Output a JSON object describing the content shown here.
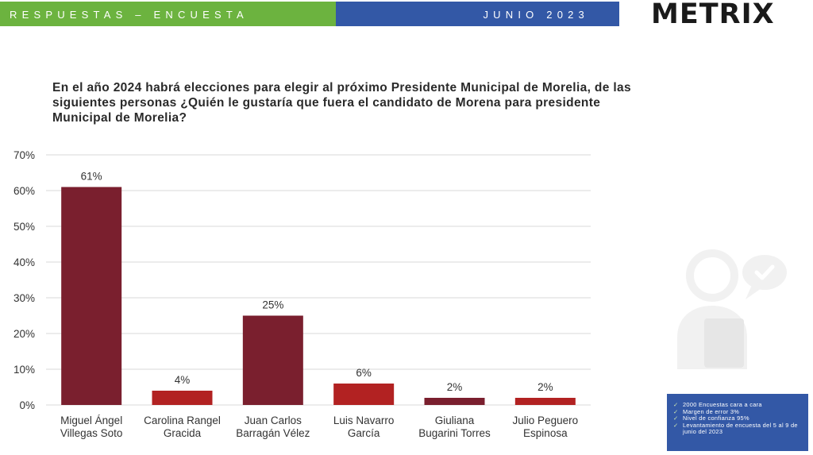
{
  "header": {
    "left_label": "RESPUESTAS – ENCUESTA",
    "right_label": "JUNIO 2023",
    "logo_text": "METRIX"
  },
  "question": "En el año 2024 habrá elecciones para elegir al próximo Presidente Municipal de Morelia, de las siguientes personas ¿Quién le gustaría que fuera el candidato de Morena para presidente Municipal de Morelia?",
  "chart_data": {
    "type": "bar",
    "categories": [
      [
        "Miguel Ángel",
        "Villegas Soto"
      ],
      [
        "Carolina Rangel",
        "Gracida"
      ],
      [
        "Juan Carlos",
        "Barragán Vélez"
      ],
      [
        "Luis Navarro",
        "García"
      ],
      [
        "Giuliana",
        "Bugarini Torres"
      ],
      [
        "Julio Peguero",
        "Espinosa"
      ]
    ],
    "values": [
      61,
      4,
      25,
      6,
      2,
      2
    ],
    "data_labels": [
      "61%",
      "4%",
      "25%",
      "6%",
      "2%",
      "2%"
    ],
    "bar_colors": [
      "#7a1f2e",
      "#b22222",
      "#7a1f2e",
      "#b22222",
      "#7a1f2e",
      "#b22222"
    ],
    "ylim": [
      0,
      70
    ],
    "yticks": [
      0,
      10,
      20,
      30,
      40,
      50,
      60,
      70
    ],
    "ytick_labels": [
      "0%",
      "10%",
      "20%",
      "30%",
      "40%",
      "50%",
      "60%",
      "70%"
    ],
    "grid": true,
    "title": "",
    "xlabel": "",
    "ylabel": ""
  },
  "methodology": [
    "2000 Encuestas cara a cara",
    "Margen de error 3%",
    "Nivel de confianza 95%",
    "Levantamiento de encuesta del 5 al 9 de junio del 2023"
  ],
  "colors": {
    "green_band": "#6cb33f",
    "blue_band": "#3358a6",
    "bar_dark": "#7a1f2e",
    "bar_red": "#b22222"
  }
}
